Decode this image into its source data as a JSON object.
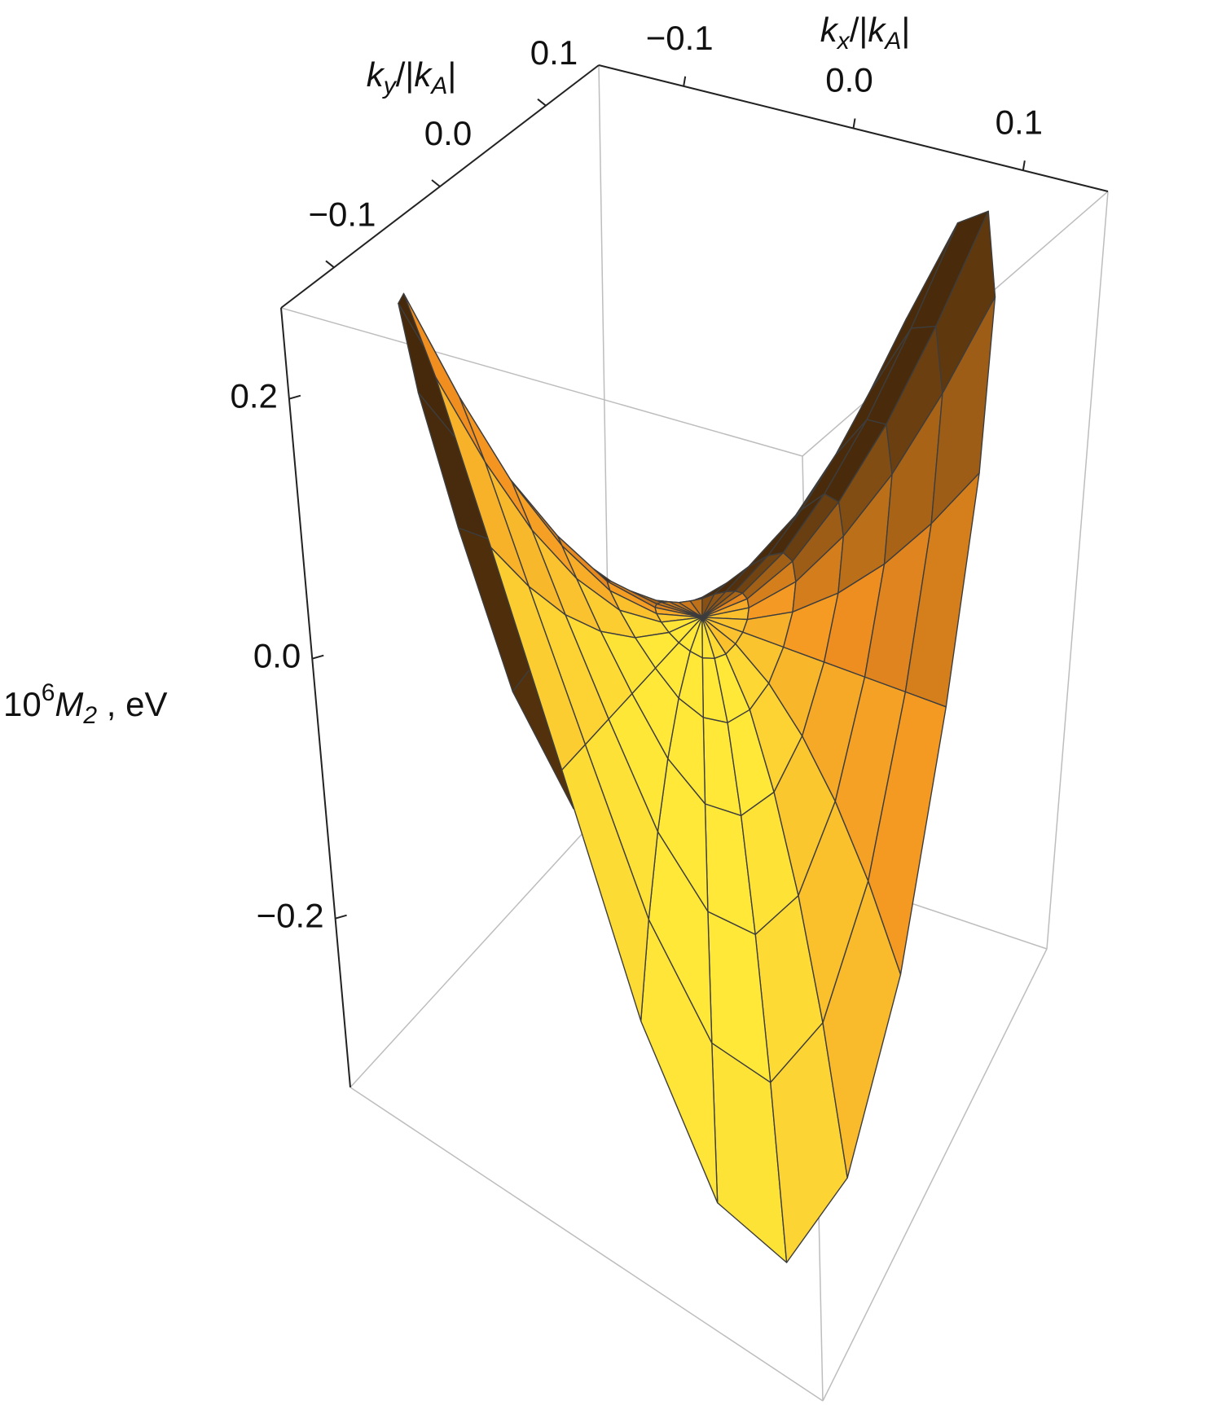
{
  "chart_data": {
    "type": "surface",
    "x_label": [
      "k",
      "x",
      "/|",
      "k",
      "A",
      "|"
    ],
    "y_label": [
      "k",
      "y",
      "/|",
      "k",
      "A",
      "|"
    ],
    "z_label": [
      "10",
      "6",
      "M",
      "2",
      " , eV"
    ],
    "xlim": [
      -0.15,
      0.15
    ],
    "ylim": [
      -0.15,
      0.15
    ],
    "zlim": [
      -0.33,
      0.27
    ],
    "xticks": [
      {
        "value": -0.1,
        "label": "−0.1"
      },
      {
        "value": 0,
        "label": "0.0"
      },
      0.1
    ],
    "yticks": [
      {
        "value": -0.1,
        "label": "−0.1"
      },
      {
        "value": 0,
        "label": "0.0"
      },
      0.1
    ],
    "zticks": [
      {
        "value": -0.2,
        "label": "−0.2"
      },
      {
        "value": 0,
        "label": "0.0"
      },
      0.2
    ],
    "colors": [
      "#3a220a",
      "#f39020",
      "#ffe838"
    ],
    "r": [
      0,
      0.025,
      0.05,
      0.075,
      0.1,
      0.125,
      0.15
    ],
    "theta": [
      0,
      15,
      30,
      45,
      60,
      75,
      90,
      105,
      120,
      135,
      150,
      165,
      180,
      195,
      210,
      225,
      240,
      255,
      270,
      285,
      300,
      315,
      330,
      345
    ],
    "z": [
      [
        0,
        0,
        0,
        0,
        0,
        0,
        0,
        0,
        0,
        0,
        0,
        0,
        0,
        0,
        0,
        0,
        0,
        0,
        0,
        0,
        0,
        0,
        0,
        0
      ],
      [
        0,
        0.004,
        0.007,
        0.008,
        0.007,
        0.004,
        0,
        -0.004,
        -0.008,
        -0.009,
        -0.008,
        -0.004,
        0,
        0.004,
        0.007,
        0.008,
        0.007,
        0.004,
        0,
        -0.004,
        -0.008,
        -0.009,
        -0.008,
        -0.004
      ],
      [
        0,
        0.015,
        0.026,
        0.03,
        0.026,
        0.015,
        0,
        -0.017,
        -0.029,
        -0.034,
        -0.029,
        -0.017,
        0,
        0.015,
        0.026,
        0.03,
        0.026,
        0.015,
        0,
        -0.017,
        -0.029,
        -0.034,
        -0.029,
        -0.017
      ],
      [
        0,
        0.034,
        0.059,
        0.068,
        0.059,
        0.034,
        0,
        -0.039,
        -0.068,
        -0.078,
        -0.068,
        -0.039,
        0,
        0.034,
        0.059,
        0.068,
        0.059,
        0.034,
        0,
        -0.039,
        -0.068,
        -0.078,
        -0.068,
        -0.039
      ],
      [
        0,
        0.06,
        0.104,
        0.12,
        0.104,
        0.06,
        0,
        -0.069,
        -0.12,
        -0.138,
        -0.12,
        -0.069,
        0,
        0.06,
        0.104,
        0.12,
        0.104,
        0.06,
        0,
        -0.069,
        -0.12,
        -0.138,
        -0.12,
        -0.069
      ],
      [
        0,
        0.094,
        0.163,
        0.188,
        0.163,
        0.094,
        0,
        -0.108,
        -0.186,
        -0.215,
        -0.186,
        -0.108,
        0,
        0.094,
        0.163,
        0.188,
        0.163,
        0.094,
        0,
        -0.108,
        -0.186,
        -0.215,
        -0.186,
        -0.108
      ],
      [
        0,
        0.135,
        0.234,
        0.27,
        0.234,
        0.135,
        0,
        -0.155,
        -0.268,
        -0.31,
        -0.268,
        -0.155,
        0,
        0.135,
        0.234,
        0.27,
        0.234,
        0.135,
        0,
        -0.155,
        -0.268,
        -0.31,
        -0.268,
        -0.155
      ]
    ]
  }
}
